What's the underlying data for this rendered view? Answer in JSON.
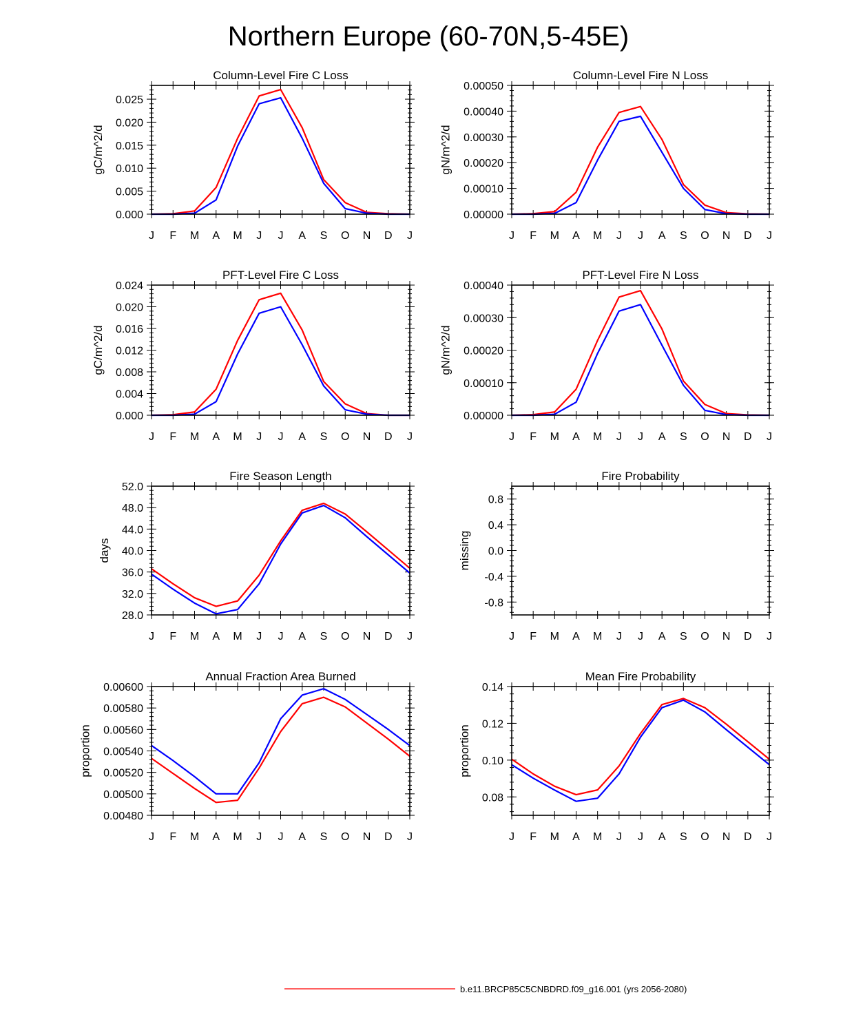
{
  "figure": {
    "title": "Northern Europe (60-70N,5-45E)",
    "legend": [
      {
        "label": "b.e11.BRCP85C5CNBDRD.f09_g16.001 (yrs 2056-2080)",
        "color": "#ff0000"
      }
    ]
  },
  "colors": {
    "series_a": "#ff0000",
    "series_b": "#0000ff"
  },
  "chart_data": [
    {
      "type": "line",
      "title": "Column-Level Fire C Loss",
      "ylabel": "gC/m^2/d",
      "xlabel": "",
      "categories": [
        "J",
        "F",
        "M",
        "A",
        "M",
        "J",
        "J",
        "A",
        "S",
        "O",
        "N",
        "D",
        "J"
      ],
      "ylim": [
        0,
        0.028
      ],
      "yticks": [
        0,
        0.005,
        0.01,
        0.015,
        0.02,
        0.025
      ],
      "ytick_labels": [
        "0.000",
        "0.005",
        "0.010",
        "0.015",
        "0.020",
        "0.025"
      ],
      "series": [
        {
          "name": "red",
          "color": "#ff0000",
          "values": [
            0.0,
            0.0001,
            0.0007,
            0.0058,
            0.0165,
            0.0257,
            0.0271,
            0.0188,
            0.0075,
            0.0025,
            0.0004,
            0.0001,
            0.0
          ]
        },
        {
          "name": "blue",
          "color": "#0000ff",
          "values": [
            0.0,
            0.0,
            0.0002,
            0.0031,
            0.0148,
            0.024,
            0.0253,
            0.0165,
            0.0067,
            0.0012,
            0.0002,
            0.0,
            0.0
          ]
        }
      ]
    },
    {
      "type": "line",
      "title": "Column-Level Fire N Loss",
      "ylabel": "gN/m^2/d",
      "xlabel": "",
      "categories": [
        "J",
        "F",
        "M",
        "A",
        "M",
        "J",
        "J",
        "A",
        "S",
        "O",
        "N",
        "D",
        "J"
      ],
      "ylim": [
        0,
        0.0005
      ],
      "yticks": [
        0,
        0.0001,
        0.0002,
        0.0003,
        0.0004,
        0.0005
      ],
      "ytick_labels": [
        "0.00000",
        "0.00010",
        "0.00020",
        "0.00030",
        "0.00040",
        "0.00050"
      ],
      "series": [
        {
          "name": "red",
          "color": "#ff0000",
          "values": [
            0.0,
            2e-06,
            1e-05,
            8.5e-05,
            0.00026,
            0.000395,
            0.000418,
            0.00029,
            0.000115,
            3.5e-05,
            6e-06,
            1e-06,
            0.0
          ]
        },
        {
          "name": "blue",
          "color": "#0000ff",
          "values": [
            0.0,
            0.0,
            3e-06,
            4.5e-05,
            0.00021,
            0.00036,
            0.00038,
            0.00024,
            0.0001,
            1.8e-05,
            2e-06,
            0.0,
            0.0
          ]
        }
      ]
    },
    {
      "type": "line",
      "title": "PFT-Level Fire C Loss",
      "ylabel": "gC/m^2/d",
      "xlabel": "",
      "categories": [
        "J",
        "F",
        "M",
        "A",
        "M",
        "J",
        "J",
        "A",
        "S",
        "O",
        "N",
        "D",
        "J"
      ],
      "ylim": [
        0,
        0.024
      ],
      "yticks": [
        0,
        0.004,
        0.008,
        0.012,
        0.016,
        0.02,
        0.024
      ],
      "ytick_labels": [
        "0.000",
        "0.004",
        "0.008",
        "0.012",
        "0.016",
        "0.020",
        "0.024"
      ],
      "series": [
        {
          "name": "red",
          "color": "#ff0000",
          "values": [
            0.0,
            0.0001,
            0.0006,
            0.0048,
            0.0138,
            0.0213,
            0.0225,
            0.0157,
            0.0062,
            0.0021,
            0.0003,
            0.0,
            0.0
          ]
        },
        {
          "name": "blue",
          "color": "#0000ff",
          "values": [
            0.0,
            0.0,
            0.0002,
            0.0025,
            0.0113,
            0.0188,
            0.02,
            0.013,
            0.0054,
            0.001,
            0.0002,
            0.0,
            0.0
          ]
        }
      ]
    },
    {
      "type": "line",
      "title": "PFT-Level Fire N Loss",
      "ylabel": "gN/m^2/d",
      "xlabel": "",
      "categories": [
        "J",
        "F",
        "M",
        "A",
        "M",
        "J",
        "J",
        "A",
        "S",
        "O",
        "N",
        "D",
        "J"
      ],
      "ylim": [
        0,
        0.0004
      ],
      "yticks": [
        0,
        0.0001,
        0.0002,
        0.0003,
        0.0004
      ],
      "ytick_labels": [
        "0.00000",
        "0.00010",
        "0.00020",
        "0.00030",
        "0.00040"
      ],
      "series": [
        {
          "name": "red",
          "color": "#ff0000",
          "values": [
            0.0,
            2e-06,
            1e-05,
            8e-05,
            0.00023,
            0.000363,
            0.000383,
            0.000265,
            0.000105,
            3.3e-05,
            5e-06,
            1e-06,
            0.0
          ]
        },
        {
          "name": "blue",
          "color": "#0000ff",
          "values": [
            0.0,
            0.0,
            3e-06,
            4e-05,
            0.00019,
            0.00032,
            0.00034,
            0.000215,
            9.2e-05,
            1.5e-05,
            2e-06,
            0.0,
            0.0
          ]
        }
      ]
    },
    {
      "type": "line",
      "title": "Fire Season Length",
      "ylabel": "days",
      "xlabel": "",
      "categories": [
        "J",
        "F",
        "M",
        "A",
        "M",
        "J",
        "J",
        "A",
        "S",
        "O",
        "N",
        "D",
        "J"
      ],
      "ylim": [
        28,
        52
      ],
      "yticks": [
        28,
        32,
        36,
        40,
        44,
        48,
        52
      ],
      "ytick_labels": [
        "28.0",
        "32.0",
        "36.0",
        "40.0",
        "44.0",
        "48.0",
        "52.0"
      ],
      "series": [
        {
          "name": "red",
          "color": "#ff0000",
          "values": [
            36.6,
            33.8,
            31.2,
            29.6,
            30.6,
            35.4,
            41.8,
            47.5,
            48.8,
            46.8,
            43.5,
            40.1,
            36.7
          ]
        },
        {
          "name": "blue",
          "color": "#0000ff",
          "values": [
            35.6,
            32.8,
            30.2,
            28.2,
            29.0,
            33.8,
            41.2,
            47.0,
            48.4,
            46.1,
            42.6,
            39.2,
            35.8
          ]
        }
      ]
    },
    {
      "type": "line",
      "title": "Fire Probability",
      "ylabel": "missing",
      "xlabel": "",
      "categories": [
        "J",
        "F",
        "M",
        "A",
        "M",
        "J",
        "J",
        "A",
        "S",
        "O",
        "N",
        "D",
        "J"
      ],
      "ylim": [
        -1,
        1
      ],
      "yticks": [
        -0.8,
        -0.4,
        0.0,
        0.4,
        0.8
      ],
      "ytick_labels": [
        "-0.8",
        "-0.4",
        "0.0",
        "0.4",
        "0.8"
      ],
      "series": []
    },
    {
      "type": "line",
      "title": "Annual Fraction Area Burned",
      "ylabel": "proportion",
      "xlabel": "",
      "categories": [
        "J",
        "F",
        "M",
        "A",
        "M",
        "J",
        "J",
        "A",
        "S",
        "O",
        "N",
        "D",
        "J"
      ],
      "ylim": [
        0.0048,
        0.006
      ],
      "yticks": [
        0.0048,
        0.005,
        0.0052,
        0.0054,
        0.0056,
        0.0058,
        0.006
      ],
      "ytick_labels": [
        "0.00480",
        "0.00500",
        "0.00520",
        "0.00540",
        "0.00560",
        "0.00580",
        "0.00600"
      ],
      "series": [
        {
          "name": "red",
          "color": "#ff0000",
          "values": [
            0.00533,
            0.00519,
            0.00505,
            0.00492,
            0.00494,
            0.00524,
            0.00558,
            0.00584,
            0.0059,
            0.00581,
            0.00566,
            0.00551,
            0.00535
          ]
        },
        {
          "name": "blue",
          "color": "#0000ff",
          "values": [
            0.00545,
            0.00531,
            0.00516,
            0.005,
            0.005,
            0.00529,
            0.0057,
            0.00592,
            0.00598,
            0.00588,
            0.00574,
            0.0056,
            0.00545
          ]
        }
      ]
    },
    {
      "type": "line",
      "title": "Mean Fire Probability",
      "ylabel": "proportion",
      "xlabel": "",
      "categories": [
        "J",
        "F",
        "M",
        "A",
        "M",
        "J",
        "J",
        "A",
        "S",
        "O",
        "N",
        "D",
        "J"
      ],
      "ylim": [
        0.07,
        0.14
      ],
      "yticks": [
        0.08,
        0.1,
        0.12,
        0.14
      ],
      "ytick_labels": [
        "0.08",
        "0.10",
        "0.12",
        "0.14"
      ],
      "series": [
        {
          "name": "red",
          "color": "#ff0000",
          "values": [
            0.1005,
            0.0925,
            0.0858,
            0.0812,
            0.0838,
            0.0968,
            0.1145,
            0.1302,
            0.1335,
            0.1285,
            0.1195,
            0.11,
            0.1005
          ]
        },
        {
          "name": "blue",
          "color": "#0000ff",
          "values": [
            0.0975,
            0.0902,
            0.0837,
            0.0776,
            0.0793,
            0.0925,
            0.1125,
            0.1285,
            0.1326,
            0.1262,
            0.1165,
            0.107,
            0.0975
          ]
        }
      ]
    }
  ]
}
